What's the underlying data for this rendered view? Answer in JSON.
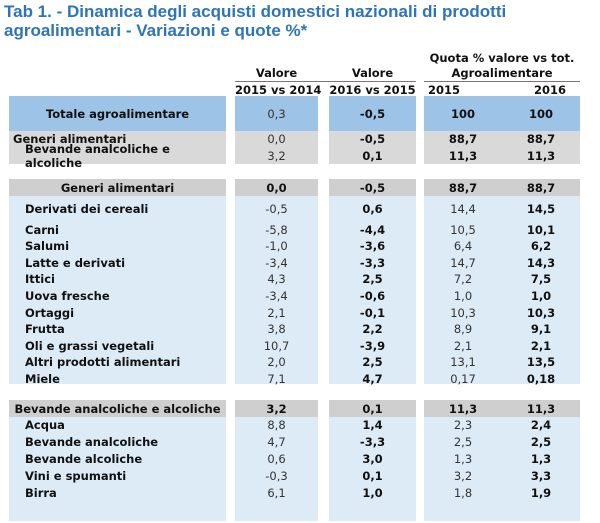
{
  "title": "Tab 1. - Dinamica degli acquisti domestici nazionali di prodotti agroalimentari - Variazioni e quote %*",
  "header": {
    "col1_top": "Valore",
    "col1_bottom": "2015 vs 2014",
    "col2_top": "Valore",
    "col2_bottom": "2016 vs 2015",
    "col3_top_line1": "Quota % valore vs tot.",
    "col3_top_line2": "Agroalimentare",
    "col3_year1": "2015",
    "col3_year2": "2016"
  },
  "colors": {
    "title": "#2E75B6",
    "total_bg": "#9DC3E6",
    "summary_bg": "#D9D9D9",
    "section_bg": "#CFCFCF",
    "body_bg": "#DDEBF7"
  },
  "total": {
    "label": "Totale agroalimentare",
    "v": [
      "0,3",
      "-0,5",
      "100",
      "100"
    ]
  },
  "summary": [
    {
      "label": "Generi alimentari",
      "v": [
        "0,0",
        "-0,5",
        "88,7",
        "88,7"
      ]
    },
    {
      "label": "Bevande analcoliche e alcoliche",
      "v": [
        "3,2",
        "0,1",
        "11,3",
        "11,3"
      ]
    }
  ],
  "sections": [
    {
      "header": {
        "label": "Generi alimentari",
        "v": [
          "0,0",
          "-0,5",
          "88,7",
          "88,7"
        ]
      },
      "rows": [
        {
          "label": "Derivati dei cereali",
          "v": [
            "-0,5",
            "0,6",
            "14,4",
            "14,5"
          ]
        },
        {
          "label": "Carni",
          "v": [
            "-5,8",
            "-4,4",
            "10,5",
            "10,1"
          ]
        },
        {
          "label": "Salumi",
          "v": [
            "-1,0",
            "-3,6",
            "6,4",
            "6,2"
          ]
        },
        {
          "label": "Latte e derivati",
          "v": [
            "-3,4",
            "-3,3",
            "14,7",
            "14,3"
          ]
        },
        {
          "label": "Ittici",
          "v": [
            "4,3",
            "2,5",
            "7,2",
            "7,5"
          ]
        },
        {
          "label": "Uova fresche",
          "v": [
            "-3,4",
            "-0,6",
            "1,0",
            "1,0"
          ]
        },
        {
          "label": "Ortaggi",
          "v": [
            "2,1",
            "-0,1",
            "10,3",
            "10,3"
          ]
        },
        {
          "label": "Frutta",
          "v": [
            "3,8",
            "2,2",
            "8,9",
            "9,1"
          ]
        },
        {
          "label": "Oli e grassi vegetali",
          "v": [
            "10,7",
            "-3,9",
            "2,1",
            "2,1"
          ]
        },
        {
          "label": "Altri prodotti alimentari",
          "v": [
            "2,0",
            "2,5",
            "13,1",
            "13,5"
          ]
        },
        {
          "label": "Miele",
          "v": [
            "7,1",
            "4,7",
            "0,17",
            "0,18"
          ]
        }
      ]
    },
    {
      "header": {
        "label": "Bevande analcoliche e alcoliche",
        "v": [
          "3,2",
          "0,1",
          "11,3",
          "11,3"
        ]
      },
      "rows": [
        {
          "label": "Acqua",
          "v": [
            "8,8",
            "1,4",
            "2,3",
            "2,4"
          ]
        },
        {
          "label": "Bevande analcoliche",
          "v": [
            "4,7",
            "-3,3",
            "2,5",
            "2,5"
          ]
        },
        {
          "label": "Bevande alcoliche",
          "v": [
            "0,6",
            "3,0",
            "1,3",
            "1,3"
          ]
        },
        {
          "label": "Vini e spumanti",
          "v": [
            "-0,3",
            "0,1",
            "3,2",
            "3,3"
          ]
        },
        {
          "label": "Birra",
          "v": [
            "6,1",
            "1,0",
            "1,8",
            "1,9"
          ]
        }
      ]
    }
  ]
}
